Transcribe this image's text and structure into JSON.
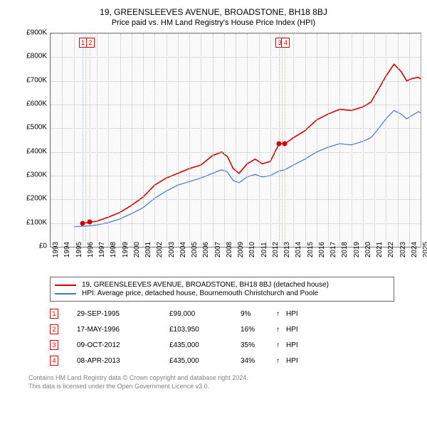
{
  "title": "19, GREENSLEEVES AVENUE, BROADSTONE, BH18 8BJ",
  "subtitle": "Price paid vs. HM Land Registry's House Price Index (HPI)",
  "chart": {
    "type": "line",
    "background_color": "#fafafa",
    "border_color": "#808080",
    "grid_color": "#c0c0c0",
    "ylim": [
      0,
      900000
    ],
    "ytick_step": 100000,
    "y_ticks": [
      "£0",
      "£100K",
      "£200K",
      "£300K",
      "£400K",
      "£500K",
      "£600K",
      "£700K",
      "£800K",
      "£900K"
    ],
    "x_years": [
      1993,
      1994,
      1995,
      1996,
      1997,
      1998,
      1999,
      2000,
      2001,
      2002,
      2003,
      2004,
      2005,
      2006,
      2007,
      2008,
      2009,
      2010,
      2011,
      2012,
      2013,
      2014,
      2015,
      2016,
      2017,
      2018,
      2019,
      2020,
      2021,
      2022,
      2023,
      2024,
      2025
    ],
    "axis_fontsize": 10,
    "series": [
      {
        "name": "property",
        "color": "#d00000",
        "width": 1.6,
        "points": [
          [
            1995.75,
            99000
          ],
          [
            1996.38,
            103950
          ],
          [
            1997,
            108000
          ],
          [
            1998,
            125000
          ],
          [
            1999,
            145000
          ],
          [
            2000,
            175000
          ],
          [
            2001,
            210000
          ],
          [
            2002,
            260000
          ],
          [
            2003,
            290000
          ],
          [
            2004,
            310000
          ],
          [
            2005,
            330000
          ],
          [
            2006,
            345000
          ],
          [
            2007,
            385000
          ],
          [
            2007.8,
            400000
          ],
          [
            2008.3,
            380000
          ],
          [
            2008.8,
            330000
          ],
          [
            2009.3,
            310000
          ],
          [
            2010,
            350000
          ],
          [
            2010.7,
            370000
          ],
          [
            2011.3,
            350000
          ],
          [
            2012,
            360000
          ],
          [
            2012.77,
            435000
          ],
          [
            2013.27,
            435000
          ],
          [
            2014,
            460000
          ],
          [
            2015,
            490000
          ],
          [
            2016,
            535000
          ],
          [
            2017,
            560000
          ],
          [
            2018,
            580000
          ],
          [
            2019,
            575000
          ],
          [
            2020,
            590000
          ],
          [
            2020.7,
            610000
          ],
          [
            2021.3,
            660000
          ],
          [
            2022,
            720000
          ],
          [
            2022.7,
            770000
          ],
          [
            2023.3,
            740000
          ],
          [
            2023.8,
            700000
          ],
          [
            2024.3,
            710000
          ],
          [
            2024.8,
            715000
          ],
          [
            2025.3,
            700000
          ]
        ]
      },
      {
        "name": "hpi",
        "color": "#4575d4",
        "width": 1.2,
        "points": [
          [
            1995,
            85000
          ],
          [
            1996,
            87000
          ],
          [
            1997,
            92000
          ],
          [
            1998,
            102000
          ],
          [
            1999,
            118000
          ],
          [
            2000,
            140000
          ],
          [
            2001,
            165000
          ],
          [
            2002,
            205000
          ],
          [
            2003,
            235000
          ],
          [
            2004,
            260000
          ],
          [
            2005,
            275000
          ],
          [
            2006,
            290000
          ],
          [
            2007,
            310000
          ],
          [
            2007.8,
            325000
          ],
          [
            2008.3,
            315000
          ],
          [
            2008.8,
            280000
          ],
          [
            2009.3,
            270000
          ],
          [
            2010,
            295000
          ],
          [
            2010.7,
            305000
          ],
          [
            2011.3,
            295000
          ],
          [
            2012,
            300000
          ],
          [
            2012.77,
            320000
          ],
          [
            2013.27,
            325000
          ],
          [
            2014,
            345000
          ],
          [
            2015,
            370000
          ],
          [
            2016,
            400000
          ],
          [
            2017,
            420000
          ],
          [
            2018,
            435000
          ],
          [
            2019,
            430000
          ],
          [
            2020,
            445000
          ],
          [
            2020.7,
            460000
          ],
          [
            2021.3,
            495000
          ],
          [
            2022,
            540000
          ],
          [
            2022.7,
            575000
          ],
          [
            2023.3,
            560000
          ],
          [
            2023.8,
            540000
          ],
          [
            2024.3,
            555000
          ],
          [
            2024.8,
            570000
          ],
          [
            2025.3,
            560000
          ]
        ]
      }
    ],
    "event_markers": [
      {
        "n": "1",
        "year": 1995.75,
        "price": 99000,
        "line_color": "#9bb7ff"
      },
      {
        "n": "2",
        "year": 1996.38,
        "price": 103950,
        "line_color": "#f2b3b3"
      },
      {
        "n": "3",
        "year": 2012.77,
        "price": 435000,
        "line_color": "#9bb7ff"
      },
      {
        "n": "4",
        "year": 2013.27,
        "price": 435000,
        "line_color": "#f2b3b3"
      }
    ]
  },
  "legend": {
    "items": [
      {
        "color": "#d00000",
        "label": "19, GREENSLEEVES AVENUE, BROADSTONE, BH18 8BJ (detached house)"
      },
      {
        "color": "#4575d4",
        "label": "HPI: Average price, detached house, Bournemouth Christchurch and Poole"
      }
    ]
  },
  "transactions": [
    {
      "n": "1",
      "date": "29-SEP-1995",
      "price": "£99,000",
      "pct": "9%",
      "arrow": "↑",
      "suffix": "HPI"
    },
    {
      "n": "2",
      "date": "17-MAY-1996",
      "price": "£103,950",
      "pct": "16%",
      "arrow": "↑",
      "suffix": "HPI"
    },
    {
      "n": "3",
      "date": "09-OCT-2012",
      "price": "£435,000",
      "pct": "35%",
      "arrow": "↑",
      "suffix": "HPI"
    },
    {
      "n": "4",
      "date": "08-APR-2013",
      "price": "£435,000",
      "pct": "34%",
      "arrow": "↑",
      "suffix": "HPI"
    }
  ],
  "footer": {
    "line1": "Contains HM Land Registry data © Crown copyright and database right 2024.",
    "line2": "This data is licensed under the Open Government Licence v3.0."
  }
}
